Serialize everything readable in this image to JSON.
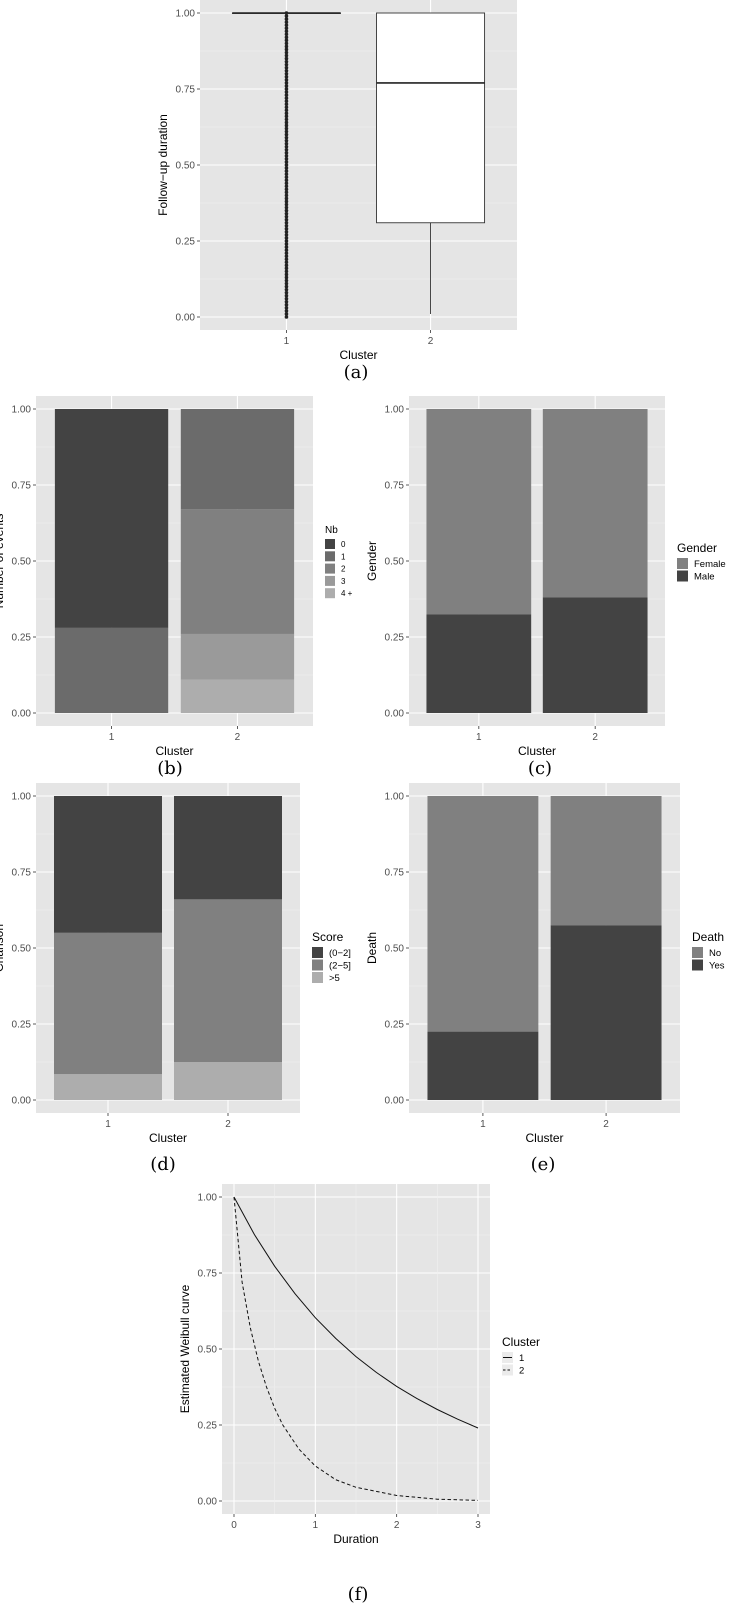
{
  "colors": {
    "panel_background": "#e5e5e5",
    "grid_major": "#ffffff",
    "grid_minor": "#f0f0f0",
    "dark": "#434343",
    "mid_dark": "#6b6b6b",
    "mid": "#808080",
    "light": "#9a9a9a",
    "lighter": "#adadad"
  },
  "chart_data": [
    {
      "id": "a",
      "type": "box",
      "caption": "(a)",
      "xlabel": "Cluster",
      "ylabel": "Follow−up duration",
      "ylim": [
        0,
        1
      ],
      "y_ticks": [
        "0.00",
        "0.25",
        "0.50",
        "0.75",
        "1.00"
      ],
      "categories": [
        "1",
        "2"
      ],
      "boxes": [
        {
          "cluster": "1",
          "min": 1.0,
          "q1": 1.0,
          "median": 1.0,
          "q3": 1.0,
          "max": 1.0,
          "outliers": "many points spanning 0.00 to 1.00"
        },
        {
          "cluster": "2",
          "min": 0.01,
          "q1": 0.31,
          "median": 0.77,
          "q3": 1.0,
          "max": 1.0
        }
      ],
      "grid": true
    },
    {
      "id": "b",
      "type": "bar",
      "stacked": true,
      "caption": "(b)",
      "xlabel": "Cluster",
      "ylabel": "Number of events",
      "ylim": [
        0,
        1
      ],
      "y_ticks": [
        "0.00",
        "0.25",
        "0.50",
        "0.75",
        "1.00"
      ],
      "categories": [
        "1",
        "2"
      ],
      "legend_title": "Nb",
      "series": [
        {
          "name": "0",
          "values": [
            0.72,
            0.0
          ],
          "color": "#434343"
        },
        {
          "name": "1",
          "values": [
            0.28,
            0.33
          ],
          "color": "#6b6b6b"
        },
        {
          "name": "2",
          "values": [
            0.0,
            0.41
          ],
          "color": "#808080"
        },
        {
          "name": "3",
          "values": [
            0.0,
            0.15
          ],
          "color": "#9a9a9a"
        },
        {
          "name": "4 +",
          "values": [
            0.0,
            0.11
          ],
          "color": "#adadad"
        }
      ],
      "grid": true,
      "legend_position": "right"
    },
    {
      "id": "c",
      "type": "bar",
      "stacked": true,
      "caption": "(c)",
      "xlabel": "Cluster",
      "ylabel": "Gender",
      "ylim": [
        0,
        1
      ],
      "y_ticks": [
        "0.00",
        "0.25",
        "0.50",
        "0.75",
        "1.00"
      ],
      "categories": [
        "1",
        "2"
      ],
      "legend_title": "Gender",
      "series": [
        {
          "name": "Female",
          "values": [
            0.675,
            0.62
          ],
          "color": "#808080"
        },
        {
          "name": "Male",
          "values": [
            0.325,
            0.38
          ],
          "color": "#434343"
        }
      ],
      "grid": true,
      "legend_position": "right"
    },
    {
      "id": "d",
      "type": "bar",
      "stacked": true,
      "caption": "(d)",
      "xlabel": "Cluster",
      "ylabel": "Charlson",
      "ylim": [
        0,
        1
      ],
      "y_ticks": [
        "0.00",
        "0.25",
        "0.50",
        "0.75",
        "1.00"
      ],
      "categories": [
        "1",
        "2"
      ],
      "legend_title": "Score",
      "series": [
        {
          "name": "(0−2]",
          "values": [
            0.45,
            0.34
          ],
          "color": "#434343"
        },
        {
          "name": "(2−5]",
          "values": [
            0.465,
            0.535
          ],
          "color": "#808080"
        },
        {
          "name": ">5",
          "values": [
            0.085,
            0.125
          ],
          "color": "#adadad"
        }
      ],
      "grid": true,
      "legend_position": "right"
    },
    {
      "id": "e",
      "type": "bar",
      "stacked": true,
      "caption": "(e)",
      "xlabel": "Cluster",
      "ylabel": "Death",
      "ylim": [
        0,
        1
      ],
      "y_ticks": [
        "0.00",
        "0.25",
        "0.50",
        "0.75",
        "1.00"
      ],
      "categories": [
        "1",
        "2"
      ],
      "legend_title": "Death",
      "series": [
        {
          "name": "No",
          "values": [
            0.775,
            0.425
          ],
          "color": "#808080"
        },
        {
          "name": "Yes",
          "values": [
            0.225,
            0.575
          ],
          "color": "#434343"
        }
      ],
      "grid": true,
      "legend_position": "right"
    },
    {
      "id": "f",
      "type": "line",
      "caption": "(f)",
      "xlabel": "Duration",
      "ylabel": "Estimated Weibull curve",
      "xlim": [
        0,
        3
      ],
      "ylim": [
        0,
        1
      ],
      "x_ticks": [
        "0",
        "1",
        "2",
        "3"
      ],
      "y_ticks": [
        "0.00",
        "0.25",
        "0.50",
        "0.75",
        "1.00"
      ],
      "legend_title": "Cluster",
      "series": [
        {
          "name": "1",
          "dash": "solid",
          "x": [
            0,
            0.25,
            0.5,
            0.75,
            1.0,
            1.25,
            1.5,
            1.75,
            2.0,
            2.25,
            2.5,
            2.75,
            3.0
          ],
          "y": [
            1.0,
            0.877,
            0.772,
            0.682,
            0.603,
            0.535,
            0.475,
            0.423,
            0.377,
            0.337,
            0.301,
            0.269,
            0.24
          ]
        },
        {
          "name": "2",
          "dash": "dashed",
          "x": [
            0,
            0.1,
            0.2,
            0.3,
            0.4,
            0.5,
            0.6,
            0.8,
            1.0,
            1.25,
            1.5,
            2.0,
            2.5,
            3.0
          ],
          "y": [
            1.0,
            0.72,
            0.57,
            0.46,
            0.375,
            0.305,
            0.25,
            0.17,
            0.115,
            0.07,
            0.045,
            0.018,
            0.006,
            0.002
          ]
        }
      ],
      "grid": true,
      "legend_position": "right"
    }
  ]
}
